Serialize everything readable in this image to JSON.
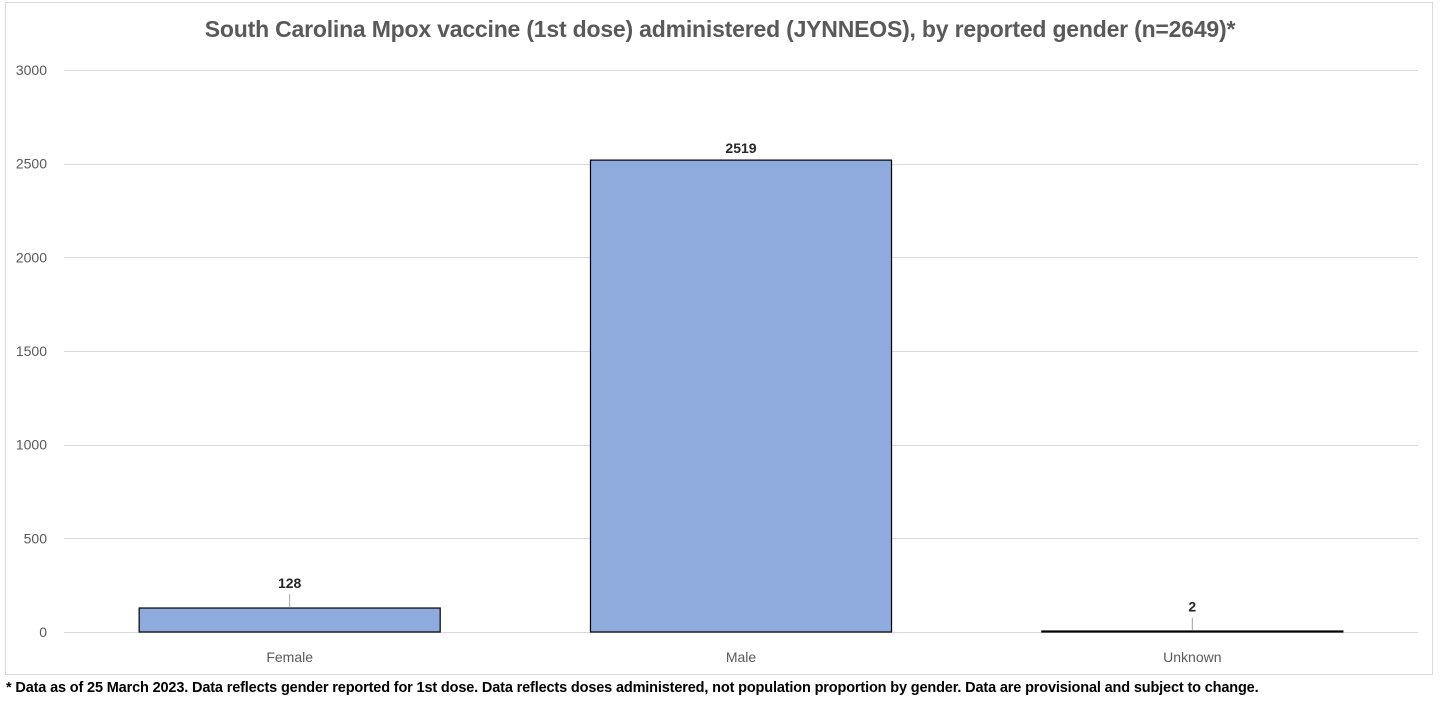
{
  "chart_data": {
    "type": "bar",
    "title": "South Carolina Mpox vaccine (1st dose) administered (JYNNEOS), by reported gender (n=2649)*",
    "xlabel": "",
    "ylabel": "",
    "categories": [
      "Female",
      "Male",
      "Unknown"
    ],
    "values": [
      128,
      2519,
      2
    ],
    "data_labels": [
      "128",
      "2519",
      "2"
    ],
    "ylim": [
      0,
      3000
    ],
    "yticks": [
      0,
      500,
      1000,
      1500,
      2000,
      2500,
      3000
    ],
    "grid": true,
    "legend": "none",
    "bar_color": "#8faadc",
    "bar_edge_color": "#000000",
    "footnote": "* Data as of 25 March 2023. Data reflects gender reported for 1st dose. Data reflects doses administered, not population proportion by gender. Data are provisional and subject to change."
  }
}
